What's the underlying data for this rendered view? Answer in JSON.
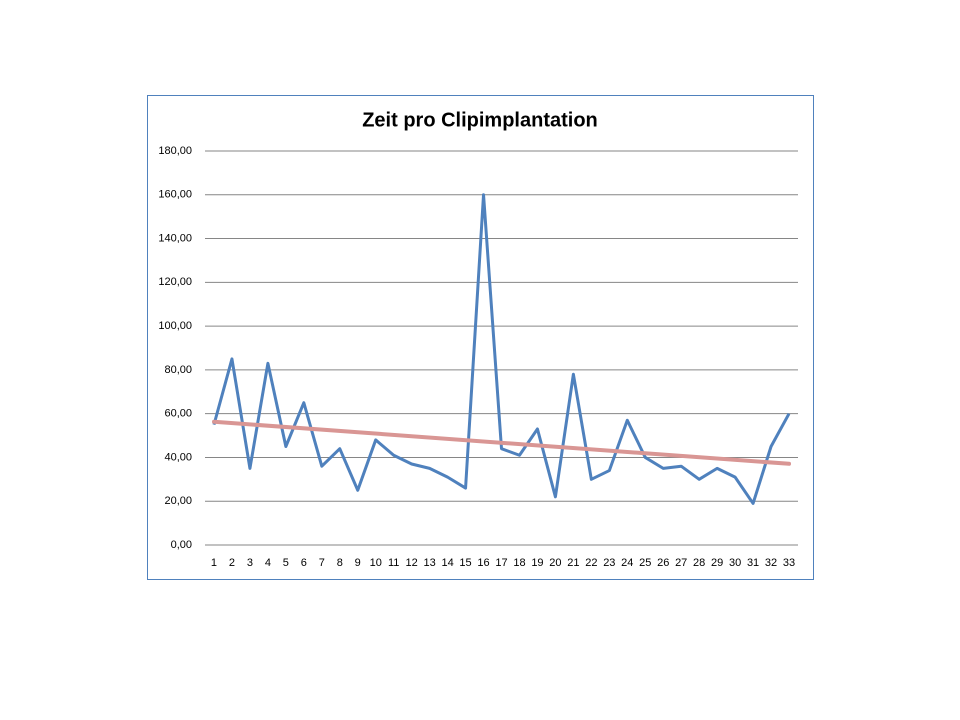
{
  "chart_data": {
    "type": "line",
    "title": "Zeit pro Clipimplantation",
    "categories": [
      "1",
      "2",
      "3",
      "4",
      "5",
      "6",
      "7",
      "8",
      "9",
      "10",
      "11",
      "12",
      "13",
      "14",
      "15",
      "16",
      "17",
      "18",
      "19",
      "20",
      "21",
      "22",
      "23",
      "24",
      "25",
      "26",
      "27",
      "28",
      "29",
      "30",
      "31",
      "32",
      "33"
    ],
    "series": [
      {
        "color": "#4f81bd",
        "values": [
          55,
          85,
          35,
          83,
          45,
          65,
          36,
          44,
          25,
          48,
          41,
          37,
          35,
          31,
          26,
          160,
          44,
          41,
          53,
          22,
          78,
          30,
          34,
          57,
          40,
          35,
          36,
          30,
          35,
          31,
          19,
          45,
          60
        ]
      }
    ],
    "trendline": {
      "color": "#d99694",
      "values": [
        56.3,
        37.1
      ]
    },
    "ylim": [
      0,
      180
    ],
    "yticks": [
      {
        "value": 0,
        "label": "0,00"
      },
      {
        "value": 20,
        "label": "20,00"
      },
      {
        "value": 40,
        "label": "40,00"
      },
      {
        "value": 60,
        "label": "60,00"
      },
      {
        "value": 80,
        "label": "80,00"
      },
      {
        "value": 100,
        "label": "100,00"
      },
      {
        "value": 120,
        "label": "120,00"
      },
      {
        "value": 140,
        "label": "140,00"
      },
      {
        "value": 160,
        "label": "160,00"
      },
      {
        "value": 180,
        "label": "180,00"
      }
    ],
    "grid": true
  }
}
